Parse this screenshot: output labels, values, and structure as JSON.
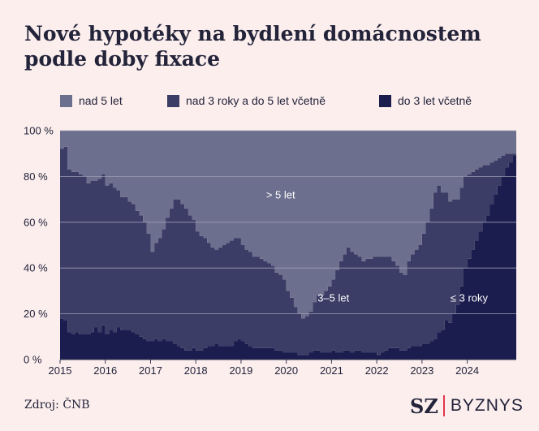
{
  "title": "Nové hypotéky na bydlení domácnostem podle doby fixace",
  "source": "Zdroj: ČNB",
  "brand": {
    "mark": "SZ",
    "name": "BYZNYS"
  },
  "colors": {
    "background": "#fbeeed",
    "nad_5": "#6c6f8e",
    "mid": "#3b3d66",
    "short": "#1b1d4e",
    "grid": "#9b9db4",
    "brand_separator": "#e3354a"
  },
  "chart_data": {
    "type": "area",
    "stacked": true,
    "title": "Nové hypotéky na bydlení domácnostem podle doby fixace",
    "xlabel": "",
    "ylabel": "",
    "ylim": [
      0,
      100
    ],
    "y_unit": "%",
    "yticks": [
      "0 %",
      "20 %",
      "40 %",
      "60 %",
      "80 %",
      "100 %"
    ],
    "yticks_values": [
      0,
      20,
      40,
      60,
      80,
      100
    ],
    "xticks": [
      "2015",
      "2016",
      "2017",
      "2018",
      "2019",
      "2020",
      "2021",
      "2022",
      "2023",
      "2024"
    ],
    "x_start": "2015-01",
    "frequency": "monthly",
    "grid": true,
    "legend_position": "top",
    "legend": [
      "nad 5 let",
      "nad 3 roky a do 5 let včetně",
      "do 3 let včetně"
    ],
    "annotations": [
      {
        "text": ">  5 let",
        "date": "2019-11",
        "value": 72
      },
      {
        "text": "3–5 let",
        "date": "2021-01",
        "value": 27
      },
      {
        "text": "≤ 3 roky",
        "date": "2024-01",
        "value": 27
      }
    ],
    "series": [
      {
        "name": "do 3 let včetně",
        "values": [
          18,
          17,
          12,
          11,
          12,
          11,
          11,
          11,
          12,
          14,
          12,
          15,
          11,
          13,
          12,
          14,
          13,
          13,
          13,
          12,
          11,
          10,
          9,
          8,
          8,
          9,
          8,
          9,
          8,
          8,
          7,
          6,
          5,
          4,
          4,
          5,
          4,
          4,
          5,
          6,
          6,
          7,
          6,
          6,
          6,
          6,
          8,
          9,
          8,
          7,
          6,
          5,
          5,
          5,
          5,
          5,
          5,
          4,
          4,
          3,
          3,
          3,
          3,
          2,
          2,
          2,
          3,
          4,
          4,
          3,
          3,
          3,
          4,
          3,
          3,
          4,
          4,
          3,
          4,
          4,
          3,
          3,
          3,
          3,
          2,
          3,
          4,
          5,
          5,
          5,
          4,
          4,
          5,
          6,
          6,
          6,
          7,
          7,
          8,
          9,
          12,
          13,
          17,
          16,
          20,
          24,
          32,
          40,
          44,
          48,
          52,
          56,
          60,
          63,
          68,
          72,
          76,
          80,
          84,
          86,
          89
        ]
      },
      {
        "name": "nad 3 roky a do 5 let včetně",
        "values": [
          74,
          76,
          71,
          71,
          70,
          70,
          69,
          66,
          66,
          64,
          67,
          66,
          65,
          64,
          63,
          60,
          58,
          58,
          56,
          56,
          54,
          53,
          51,
          47,
          39,
          42,
          45,
          48,
          54,
          58,
          63,
          64,
          63,
          62,
          59,
          56,
          52,
          50,
          48,
          45,
          43,
          41,
          43,
          44,
          45,
          46,
          45,
          44,
          42,
          41,
          41,
          40,
          40,
          39,
          38,
          37,
          36,
          34,
          33,
          32,
          27,
          24,
          20,
          18,
          16,
          17,
          18,
          21,
          24,
          25,
          27,
          29,
          31,
          36,
          40,
          42,
          45,
          44,
          42,
          41,
          40,
          41,
          41,
          42,
          43,
          42,
          41,
          40,
          38,
          36,
          34,
          33,
          38,
          40,
          42,
          44,
          48,
          53,
          58,
          64,
          64,
          60,
          56,
          53,
          50,
          46,
          43,
          40,
          37,
          34,
          31,
          28,
          25,
          22,
          18,
          15,
          12,
          9,
          6,
          4,
          1
        ]
      },
      {
        "name": "nad 5 let",
        "values": [
          8,
          7,
          17,
          18,
          18,
          19,
          20,
          23,
          22,
          22,
          21,
          19,
          24,
          23,
          25,
          26,
          29,
          29,
          31,
          32,
          35,
          37,
          40,
          45,
          53,
          49,
          47,
          43,
          38,
          34,
          30,
          30,
          32,
          34,
          37,
          39,
          44,
          46,
          47,
          49,
          51,
          52,
          51,
          50,
          49,
          48,
          47,
          47,
          50,
          52,
          53,
          55,
          55,
          56,
          57,
          58,
          59,
          62,
          63,
          65,
          70,
          73,
          77,
          80,
          82,
          81,
          79,
          75,
          72,
          72,
          70,
          68,
          65,
          61,
          57,
          54,
          51,
          53,
          54,
          55,
          57,
          56,
          56,
          55,
          55,
          55,
          55,
          55,
          57,
          59,
          62,
          63,
          57,
          54,
          52,
          50,
          45,
          40,
          34,
          27,
          24,
          27,
          27,
          31,
          30,
          30,
          25,
          20,
          19,
          18,
          17,
          16,
          15,
          15,
          14,
          13,
          12,
          11,
          10,
          10,
          10
        ]
      }
    ]
  }
}
